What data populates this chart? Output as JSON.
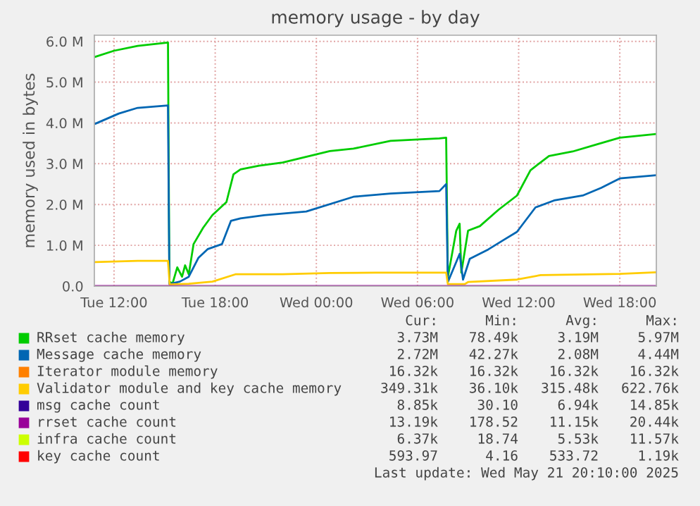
{
  "chart_data": {
    "type": "line",
    "title": "memory usage - by day",
    "ylabel": "memory used in bytes",
    "xlim": [
      "2025-05-20T10:50",
      "2025-05-21T20:10"
    ],
    "ylim": [
      0,
      6150000
    ],
    "xticks": [
      {
        "value": "2025-05-20T12:00",
        "label": "Tue 12:00"
      },
      {
        "value": "2025-05-20T18:00",
        "label": "Tue 18:00"
      },
      {
        "value": "2025-05-21T00:00",
        "label": "Wed 00:00"
      },
      {
        "value": "2025-05-21T06:00",
        "label": "Wed 06:00"
      },
      {
        "value": "2025-05-21T12:00",
        "label": "Wed 12:00"
      },
      {
        "value": "2025-05-21T18:00",
        "label": "Wed 18:00"
      }
    ],
    "yticks": [
      {
        "value": 0,
        "label": "0.0"
      },
      {
        "value": 1000000,
        "label": "1.0 M"
      },
      {
        "value": 2000000,
        "label": "2.0 M"
      },
      {
        "value": 3000000,
        "label": "3.0 M"
      },
      {
        "value": 4000000,
        "label": "4.0 M"
      },
      {
        "value": 5000000,
        "label": "5.0 M"
      },
      {
        "value": 6000000,
        "label": "6.0 M"
      }
    ],
    "grid": true,
    "legend": "bottom",
    "series": [
      {
        "name": "RRset cache memory",
        "color": "#00cc00",
        "x": [
          "2025-05-20T10:53",
          "2025-05-20T12:00",
          "2025-05-20T13:24",
          "2025-05-20T15:12",
          "2025-05-20T15:17",
          "2025-05-20T15:28",
          "2025-05-20T15:45",
          "2025-05-20T16:02",
          "2025-05-20T16:13",
          "2025-05-20T16:26",
          "2025-05-20T16:43",
          "2025-05-20T17:17",
          "2025-05-20T17:50",
          "2025-05-20T18:40",
          "2025-05-20T19:05",
          "2025-05-20T19:30",
          "2025-05-20T20:36",
          "2025-05-20T22:00",
          "2025-05-21T00:48",
          "2025-05-21T02:12",
          "2025-05-21T04:24",
          "2025-05-21T07:18",
          "2025-05-21T07:42",
          "2025-05-21T07:48",
          "2025-05-21T08:18",
          "2025-05-21T08:30",
          "2025-05-21T08:36",
          "2025-05-21T09:00",
          "2025-05-21T09:42",
          "2025-05-21T10:48",
          "2025-05-21T11:54",
          "2025-05-21T12:42",
          "2025-05-21T13:48",
          "2025-05-21T15:12",
          "2025-05-21T16:36",
          "2025-05-21T18:00",
          "2025-05-21T20:10"
        ],
        "values": [
          5620000,
          5770000,
          5890000,
          5970000,
          110000,
          60000,
          460000,
          230000,
          510000,
          290000,
          1030000,
          1430000,
          1740000,
          2060000,
          2740000,
          2860000,
          2950000,
          3030000,
          3310000,
          3370000,
          3560000,
          3620000,
          3640000,
          220000,
          1360000,
          1530000,
          330000,
          1360000,
          1470000,
          1870000,
          2220000,
          2840000,
          3190000,
          3300000,
          3470000,
          3640000,
          3730000
        ]
      },
      {
        "name": "Message cache memory",
        "color": "#0066b3",
        "x": [
          "2025-05-20T10:53",
          "2025-05-20T12:17",
          "2025-05-20T13:24",
          "2025-05-20T15:12",
          "2025-05-20T15:17",
          "2025-05-20T15:54",
          "2025-05-20T16:26",
          "2025-05-20T17:00",
          "2025-05-20T17:34",
          "2025-05-20T18:24",
          "2025-05-20T18:56",
          "2025-05-20T19:30",
          "2025-05-20T20:54",
          "2025-05-20T23:24",
          "2025-05-21T02:12",
          "2025-05-21T04:24",
          "2025-05-21T07:18",
          "2025-05-21T07:42",
          "2025-05-21T07:48",
          "2025-05-21T08:30",
          "2025-05-21T08:42",
          "2025-05-21T09:06",
          "2025-05-21T10:12",
          "2025-05-21T11:06",
          "2025-05-21T11:54",
          "2025-05-21T13:00",
          "2025-05-21T14:06",
          "2025-05-21T15:48",
          "2025-05-21T16:54",
          "2025-05-21T18:00",
          "2025-05-21T20:10"
        ],
        "values": [
          3980000,
          4230000,
          4370000,
          4430000,
          50000,
          110000,
          230000,
          690000,
          910000,
          1030000,
          1600000,
          1660000,
          1740000,
          1830000,
          2190000,
          2270000,
          2330000,
          2500000,
          100000,
          790000,
          160000,
          670000,
          900000,
          1130000,
          1330000,
          1930000,
          2100000,
          2220000,
          2410000,
          2640000,
          2720000
        ]
      },
      {
        "name": "Iterator module memory",
        "color": "#ff8000"
      },
      {
        "name": "Validator module and key cache memory",
        "color": "#ffcc00",
        "x": [
          "2025-05-20T10:53",
          "2025-05-20T13:24",
          "2025-05-20T15:12",
          "2025-05-20T15:18",
          "2025-05-20T16:26",
          "2025-05-20T17:50",
          "2025-05-20T19:12",
          "2025-05-20T22:00",
          "2025-05-21T00:48",
          "2025-05-21T03:30",
          "2025-05-21T07:42",
          "2025-05-21T07:48",
          "2025-05-21T08:48",
          "2025-05-21T09:00",
          "2025-05-21T11:54",
          "2025-05-21T13:18",
          "2025-05-21T18:00",
          "2025-05-21T20:10"
        ],
        "values": [
          590000,
          620000,
          620000,
          40000,
          60000,
          110000,
          290000,
          290000,
          320000,
          330000,
          330000,
          50000,
          50000,
          100000,
          160000,
          270000,
          300000,
          340000
        ]
      },
      {
        "name": "msg cache count",
        "color": "#330099"
      },
      {
        "name": "rrset cache count",
        "color": "#990099",
        "x": [
          "2025-05-20T10:53",
          "2025-05-21T20:10"
        ],
        "values": [
          0,
          0
        ]
      },
      {
        "name": "infra cache count",
        "color": "#ccff00"
      },
      {
        "name": "key cache count",
        "color": "#ff0000"
      }
    ],
    "annotations": [
      "Cur:",
      "Min:",
      "Avg:",
      "Max:",
      "3.73M",
      "78.49k",
      "3.19M",
      "5.97M",
      "2.72M",
      "42.27k",
      "2.08M",
      "4.44M",
      "16.32k",
      "16.32k",
      "16.32k",
      "16.32k",
      "349.31k",
      "36.10k",
      "315.48k",
      "622.76k",
      "8.85k",
      "30.10",
      "6.94k",
      "14.85k",
      "13.19k",
      "178.52",
      "11.15k",
      "20.44k",
      "6.37k",
      "18.74",
      "5.53k",
      "11.57k",
      "593.97",
      "4.16",
      "533.72",
      "1.19k",
      "Last update: Wed May 21 20:10:00 2025"
    ]
  }
}
